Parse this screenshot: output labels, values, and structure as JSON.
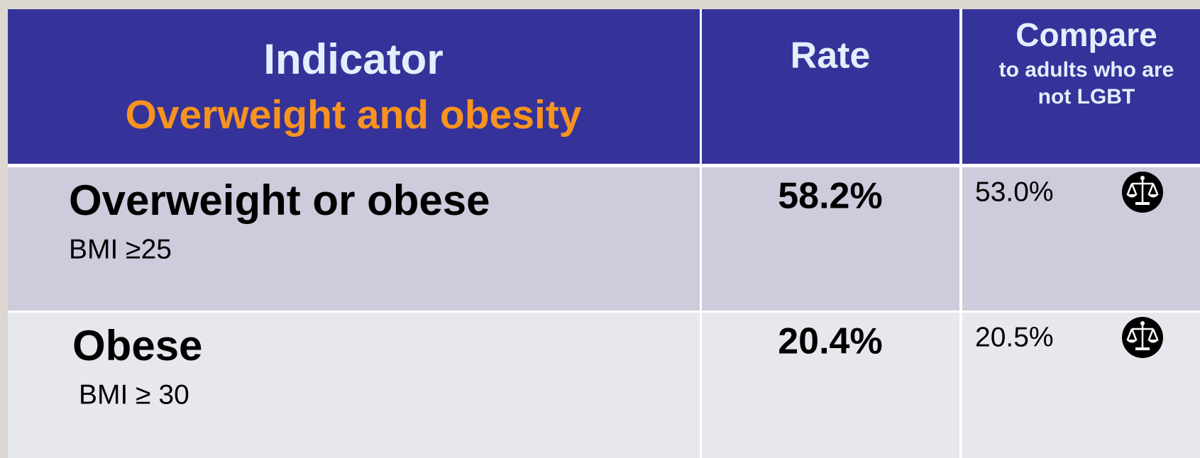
{
  "header": {
    "indicator": "Indicator",
    "topic": "Overweight and obesity",
    "rate": "Rate",
    "compare": "Compare",
    "compare_note": [
      "to adults who are",
      "not LGBT"
    ]
  },
  "rows": [
    {
      "indicator": "Overweight or obese",
      "definition": "BMI ≥25",
      "rate": "58.2%",
      "compare": "53.0%"
    },
    {
      "indicator": "Obese",
      "definition": "BMI ≥ 30",
      "rate": "20.4%",
      "compare": "20.5%"
    }
  ]
}
